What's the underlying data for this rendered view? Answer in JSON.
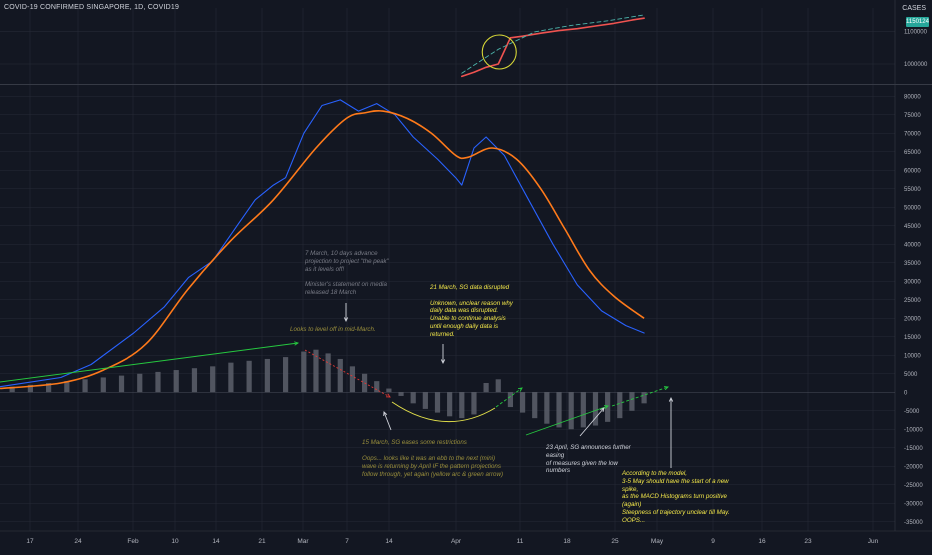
{
  "header": {
    "title": "COVID-19 CONFIRMED SINGAPORE, 1D, COVID19",
    "pane_label": "CASES",
    "current_value": "1150124"
  },
  "colors": {
    "background": "#131722",
    "grid": "#262a36",
    "price_line": "#ef5350",
    "ma_line": "#4db6ac",
    "macd_line": "#2962ff",
    "signal_line": "#ff7a1a",
    "histogram": "#5d606b",
    "annotation_green": "#26c940",
    "annotation_red": "#e53935",
    "annotation_yellow": "#e3e04a",
    "circle": "#d6d637"
  },
  "chart_data": [
    {
      "type": "line",
      "pane": "price",
      "yticks": [
        1000000,
        1100000
      ],
      "ylim": [
        945000,
        1165000
      ],
      "series": [
        {
          "label_ref": "price",
          "x": [
            "2020-03-26",
            "2020-03-28",
            "2020-03-30",
            "2020-04-01",
            "2020-04-03",
            "2020-04-05",
            "2020-04-08",
            "2020-04-11",
            "2020-04-14",
            "2020-04-17",
            "2020-04-20",
            "2020-04-23",
            "2020-04-25"
          ],
          "values": [
            962000,
            975000,
            990000,
            1000000,
            1080000,
            1085000,
            1094000,
            1102000,
            1108000,
            1116000,
            1124000,
            1134000,
            1140000
          ]
        },
        {
          "label_ref": "projection",
          "x": [
            "2020-03-26",
            "2020-04-01",
            "2020-04-07",
            "2020-04-13",
            "2020-04-19",
            "2020-04-25"
          ],
          "values": [
            972000,
            1045000,
            1098000,
            1118000,
            1132000,
            1150000
          ]
        }
      ]
    },
    {
      "type": "line",
      "pane": "indicator",
      "yticks": [
        80000,
        75000,
        70000,
        65000,
        60000,
        55000,
        50000,
        45000,
        40000,
        35000,
        30000,
        25000,
        20000,
        15000,
        10000,
        5000,
        0,
        -5000,
        -10000,
        -15000,
        -20000,
        -25000,
        -30000,
        -35000
      ],
      "ylim": [
        -37500,
        82500
      ],
      "xticks": [
        "17",
        "24",
        "Feb",
        "10",
        "14",
        "21",
        "Mar",
        "7",
        "14",
        "Apr",
        "11",
        "18",
        "25",
        "May",
        "9",
        "16",
        "23",
        "Jun"
      ],
      "series": [
        {
          "label_ref": "macd",
          "x": [
            "2020-01-10",
            "2020-01-20",
            "2020-01-25",
            "2020-02-01",
            "2020-02-06",
            "2020-02-10",
            "2020-02-14",
            "2020-02-18",
            "2020-02-21",
            "2020-02-24",
            "2020-02-26",
            "2020-02-29",
            "2020-03-03",
            "2020-03-06",
            "2020-03-09",
            "2020-03-12",
            "2020-03-15",
            "2020-03-18",
            "2020-03-22",
            "2020-03-25",
            "2020-03-26",
            "2020-03-28",
            "2020-03-30",
            "2020-04-02",
            "2020-04-06",
            "2020-04-10",
            "2020-04-14",
            "2020-04-18",
            "2020-04-22",
            "2020-04-25"
          ],
          "values": [
            1500,
            4000,
            7500,
            16000,
            23000,
            31000,
            35500,
            45000,
            52000,
            56000,
            58000,
            70000,
            77500,
            79000,
            76000,
            78000,
            75000,
            69000,
            63000,
            58000,
            56000,
            66000,
            69000,
            64000,
            52000,
            40000,
            29000,
            22000,
            18000,
            16000
          ]
        },
        {
          "label_ref": "signal",
          "x": [
            "2020-01-10",
            "2020-01-20",
            "2020-01-27",
            "2020-02-03",
            "2020-02-10",
            "2020-02-17",
            "2020-02-24",
            "2020-03-02",
            "2020-03-07",
            "2020-03-10",
            "2020-03-13",
            "2020-03-17",
            "2020-03-21",
            "2020-03-25",
            "2020-03-27",
            "2020-03-31",
            "2020-04-04",
            "2020-04-08",
            "2020-04-12",
            "2020-04-16",
            "2020-04-20",
            "2020-04-25"
          ],
          "values": [
            1000,
            2500,
            6000,
            13000,
            28000,
            41000,
            52000,
            66000,
            74000,
            75500,
            76000,
            74000,
            70000,
            64000,
            63500,
            66000,
            63000,
            55000,
            44000,
            33000,
            26000,
            20000
          ]
        },
        {
          "label_ref": "histogram",
          "type": "bar",
          "x": [
            "2020-01-12",
            "2020-01-15",
            "2020-01-18",
            "2020-01-21",
            "2020-01-24",
            "2020-01-27",
            "2020-01-30",
            "2020-02-02",
            "2020-02-05",
            "2020-02-08",
            "2020-02-11",
            "2020-02-14",
            "2020-02-17",
            "2020-02-20",
            "2020-02-23",
            "2020-02-26",
            "2020-02-29",
            "2020-03-02",
            "2020-03-04",
            "2020-03-06",
            "2020-03-08",
            "2020-03-10",
            "2020-03-12",
            "2020-03-14",
            "2020-03-16",
            "2020-03-18",
            "2020-03-20",
            "2020-03-22",
            "2020-03-24",
            "2020-03-26",
            "2020-03-28",
            "2020-03-30",
            "2020-04-01",
            "2020-04-03",
            "2020-04-05",
            "2020-04-07",
            "2020-04-09",
            "2020-04-11",
            "2020-04-13",
            "2020-04-15",
            "2020-04-17",
            "2020-04-19",
            "2020-04-21",
            "2020-04-23",
            "2020-04-25"
          ],
          "values": [
            1500,
            2000,
            2500,
            3000,
            3500,
            4000,
            4500,
            5000,
            5500,
            6000,
            6500,
            7000,
            8000,
            8500,
            9000,
            9500,
            11000,
            11500,
            10500,
            9000,
            7000,
            5000,
            3000,
            1000,
            -1000,
            -3000,
            -4500,
            -5500,
            -6500,
            -7000,
            -6000,
            2500,
            3500,
            -4000,
            -5500,
            -7000,
            -8500,
            -9500,
            -10000,
            -9500,
            -9000,
            -8000,
            -7000,
            -5000,
            -3000
          ]
        }
      ]
    }
  ],
  "annotations": {
    "note1": "7 March,  10 days advance\nprojection to project \"the peak\"\nas it levels off!\n\nMinister's statement on media\nreleased 18 March",
    "note2": "Looks to level off in mid-March.",
    "note3": "21 March, SG data disrupted\n\nUnknown, unclear reason why\ndaily data was disrupted.\nUnable to continue analysis\nuntil enough daily data is\nreturned.",
    "note4": "15 March, SG eases some restrictions",
    "note5": "Oops... looks like it was an ebb to the next (mini)\nwave is returning by April IF the pattern projections\nfollow through, yet again (yellow arc & green arrow)",
    "note6": "23 April, SG announces further\neasing\nof measures given the low\nnumbers",
    "note7": "According to the model,\n3-5 May should have the start of a new\nspike,\nas the MACD Histograms turn positive\n(again)\nSteepness of trajectory unclear till May.\nOOPS..."
  }
}
